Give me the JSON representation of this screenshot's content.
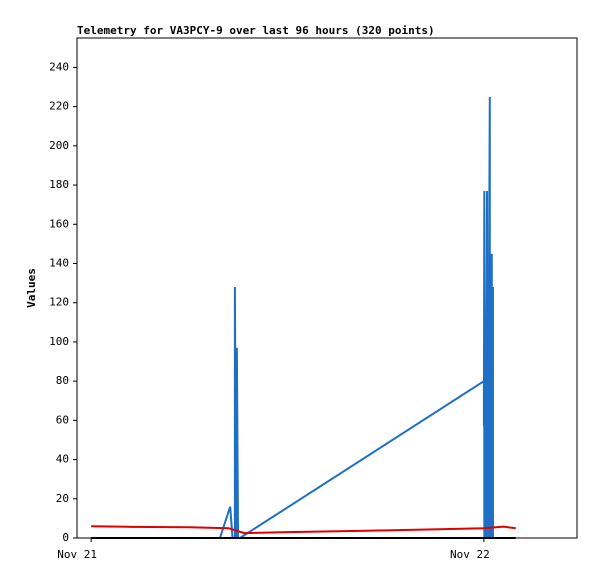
{
  "chart_data": {
    "type": "line",
    "title": "Telemetry for VA3PCY-9 over last 96 hours (320 points)",
    "y_label": "Values",
    "xlim": [
      20.964,
      22.237
    ],
    "xticks": [
      {
        "value": 21,
        "label": "Nov 21"
      },
      {
        "value": 22,
        "label": "Nov 22"
      }
    ],
    "ylim": [
      0,
      255
    ],
    "yticks": [
      0,
      20,
      40,
      60,
      80,
      100,
      120,
      140,
      160,
      180,
      200,
      220,
      240
    ],
    "grid": false,
    "series": [
      {
        "color": "#1f6fc4",
        "x": [
          21.328,
          21.354,
          21.36,
          21.366,
          21.366,
          21.369,
          21.371,
          21.371,
          21.374,
          21.379,
          22.0,
          22.0,
          22.001,
          22.001,
          22.003,
          22.008,
          22.008,
          22.01,
          22.015,
          22.015,
          22.018,
          22.02,
          22.02,
          22.022,
          22.023,
          22.023,
          22.025
        ],
        "values": [
          0,
          16,
          0,
          0,
          128,
          0,
          0,
          97,
          0,
          0,
          80,
          57,
          177,
          0,
          0,
          177,
          0,
          0,
          225,
          0,
          0,
          145,
          0,
          0,
          128,
          0,
          0
        ]
      },
      {
        "color": "#e00000",
        "x": [
          21.0,
          21.1,
          21.25,
          21.35,
          21.39,
          21.5,
          21.7,
          21.9,
          22.0,
          22.05,
          22.081
        ],
        "values": [
          6,
          5.7,
          5.5,
          5,
          2.5,
          3,
          3.7,
          4.5,
          5,
          5.8,
          5
        ]
      },
      {
        "color": "#000000",
        "x": [
          21.0,
          22.081
        ],
        "values": [
          0,
          0
        ]
      }
    ]
  }
}
